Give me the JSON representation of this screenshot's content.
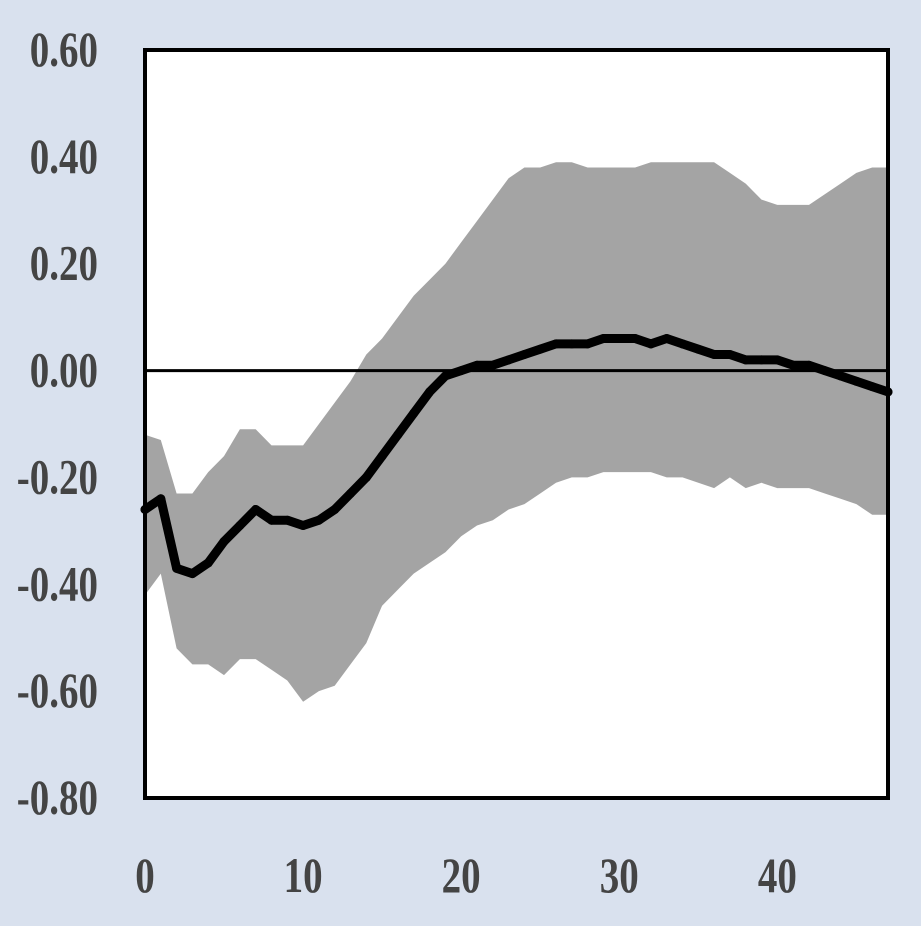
{
  "chart_data": {
    "type": "line",
    "title": "",
    "xlabel": "",
    "ylabel": "",
    "xlim": [
      0,
      47
    ],
    "ylim": [
      -0.8,
      0.6
    ],
    "grid": false,
    "zero_line": true,
    "x_ticks": [
      0,
      10,
      20,
      30,
      40
    ],
    "x_tick_labels": [
      "0",
      "10",
      "20",
      "30",
      "40"
    ],
    "y_ticks": [
      0.6,
      0.4,
      0.2,
      0.0,
      -0.2,
      -0.4,
      -0.6,
      -0.8
    ],
    "y_tick_labels": [
      "0.60",
      "0.40",
      "0.20",
      "0.00",
      "-0.20",
      "-0.40",
      "-0.60",
      "-0.80"
    ],
    "colors": {
      "background": "#d9e1ee",
      "band": "#a4a4a4",
      "line": "#000000",
      "plot_area": "#ffffff"
    },
    "x": [
      0,
      1,
      2,
      3,
      4,
      5,
      6,
      7,
      8,
      9,
      10,
      11,
      12,
      13,
      14,
      15,
      16,
      17,
      18,
      19,
      20,
      21,
      22,
      23,
      24,
      25,
      26,
      27,
      28,
      29,
      30,
      31,
      32,
      33,
      34,
      35,
      36,
      37,
      38,
      39,
      40,
      41,
      42,
      43,
      44,
      45,
      46,
      47
    ],
    "series": [
      {
        "values": [
          -0.26,
          -0.24,
          -0.37,
          -0.38,
          -0.36,
          -0.32,
          -0.29,
          -0.26,
          -0.28,
          -0.28,
          -0.29,
          -0.28,
          -0.26,
          -0.23,
          -0.2,
          -0.16,
          -0.12,
          -0.08,
          -0.04,
          -0.01,
          0.0,
          0.01,
          0.01,
          0.02,
          0.03,
          0.04,
          0.05,
          0.05,
          0.05,
          0.06,
          0.06,
          0.06,
          0.05,
          0.06,
          0.05,
          0.04,
          0.03,
          0.03,
          0.02,
          0.02,
          0.02,
          0.01,
          0.01,
          0.0,
          -0.01,
          -0.02,
          -0.03,
          -0.04
        ]
      }
    ],
    "band": {
      "upper": [
        -0.12,
        -0.13,
        -0.23,
        -0.23,
        -0.19,
        -0.16,
        -0.11,
        -0.11,
        -0.14,
        -0.14,
        -0.14,
        -0.1,
        -0.06,
        -0.02,
        0.03,
        0.06,
        0.1,
        0.14,
        0.17,
        0.2,
        0.24,
        0.28,
        0.32,
        0.36,
        0.38,
        0.38,
        0.39,
        0.39,
        0.38,
        0.38,
        0.38,
        0.38,
        0.39,
        0.39,
        0.39,
        0.39,
        0.39,
        0.37,
        0.35,
        0.32,
        0.31,
        0.31,
        0.31,
        0.33,
        0.35,
        0.37,
        0.38,
        0.38
      ],
      "lower": [
        -0.42,
        -0.38,
        -0.52,
        -0.55,
        -0.55,
        -0.57,
        -0.54,
        -0.54,
        -0.56,
        -0.58,
        -0.62,
        -0.6,
        -0.59,
        -0.55,
        -0.51,
        -0.44,
        -0.41,
        -0.38,
        -0.36,
        -0.34,
        -0.31,
        -0.29,
        -0.28,
        -0.26,
        -0.25,
        -0.23,
        -0.21,
        -0.2,
        -0.2,
        -0.19,
        -0.19,
        -0.19,
        -0.19,
        -0.2,
        -0.2,
        -0.21,
        -0.22,
        -0.2,
        -0.22,
        -0.21,
        -0.22,
        -0.22,
        -0.22,
        -0.23,
        -0.24,
        -0.25,
        -0.27,
        -0.27
      ]
    }
  }
}
